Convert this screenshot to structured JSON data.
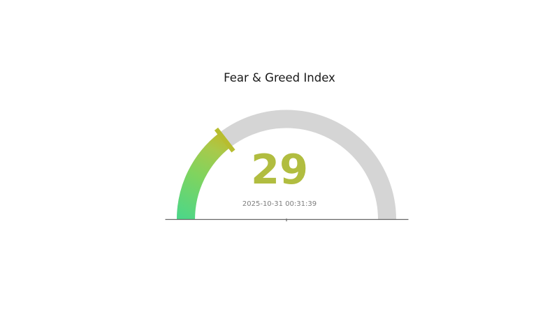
{
  "chart": {
    "title": "Fear & Greed Index",
    "value_label": "29",
    "timestamp": "2025-10-31 00:31:39"
  },
  "chart_data": {
    "type": "gauge",
    "title": "Fear & Greed Index",
    "value": 29,
    "min": 0,
    "max": 100,
    "value_label": "29",
    "subtitle_timestamp": "2025-10-31 00:31:39",
    "arc_span_degrees": 180,
    "legend": false,
    "grid": false,
    "colors": {
      "track": "#d5d5d5",
      "title_text": "#191919",
      "value_text": "#b1bd40",
      "needle": "#b7bd2f",
      "timestamp_text": "#7d7d7d",
      "baseline": "#666666",
      "gradient_stops": [
        {
          "offset": 0.0,
          "color": "#4ed687"
        },
        {
          "offset": 0.5,
          "color": "#7fd45f"
        },
        {
          "offset": 0.85,
          "color": "#a9c94a"
        },
        {
          "offset": 1.0,
          "color": "#b9be33"
        }
      ]
    }
  }
}
